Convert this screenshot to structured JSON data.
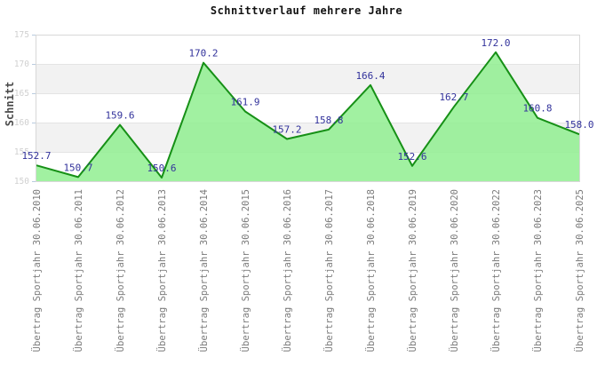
{
  "chart_data": {
    "type": "area",
    "title": "Schnittverlauf mehrere Jahre",
    "ylabel": "Schnitt",
    "xlabel": "",
    "categories": [
      "Übertrag Sportjahr 30.06.2010",
      "Übertrag Sportjahr 30.06.2011",
      "Übertrag Sportjahr 30.06.2012",
      "Übertrag Sportjahr 30.06.2013",
      "Übertrag Sportjahr 30.06.2014",
      "Übertrag Sportjahr 30.06.2015",
      "Übertrag Sportjahr 30.06.2016",
      "Übertrag Sportjahr 30.06.2017",
      "Übertrag Sportjahr 30.06.2018",
      "Übertrag Sportjahr 30.06.2019",
      "Übertrag Sportjahr 30.06.2020",
      "Übertrag Sportjahr 30.06.2022",
      "Übertrag Sportjahr 30.06.2023",
      "Übertrag Sportjahr 30.06.2025"
    ],
    "values": [
      152.7,
      150.7,
      159.6,
      150.6,
      170.2,
      161.9,
      157.2,
      158.8,
      166.4,
      152.6,
      162.7,
      172.0,
      160.8,
      158.0
    ],
    "ylim": [
      150,
      175
    ],
    "yticks": [
      150,
      155,
      160,
      165,
      170,
      175
    ],
    "grid": "horizontal-bands",
    "legend": "none",
    "colors": {
      "line": "#169016",
      "fill": "#90ee90",
      "value_label": "#32329b",
      "x_tick_label": "#7b7b7b",
      "y_tick_label": "#d0d0d0",
      "band": "#f2f2f2",
      "gridline": "#e4e4e4",
      "border": "#d8d8d8",
      "axis_tick": "#b9cbdf",
      "title_color": "#111111",
      "ylabel_color": "#4a4a4a"
    }
  }
}
